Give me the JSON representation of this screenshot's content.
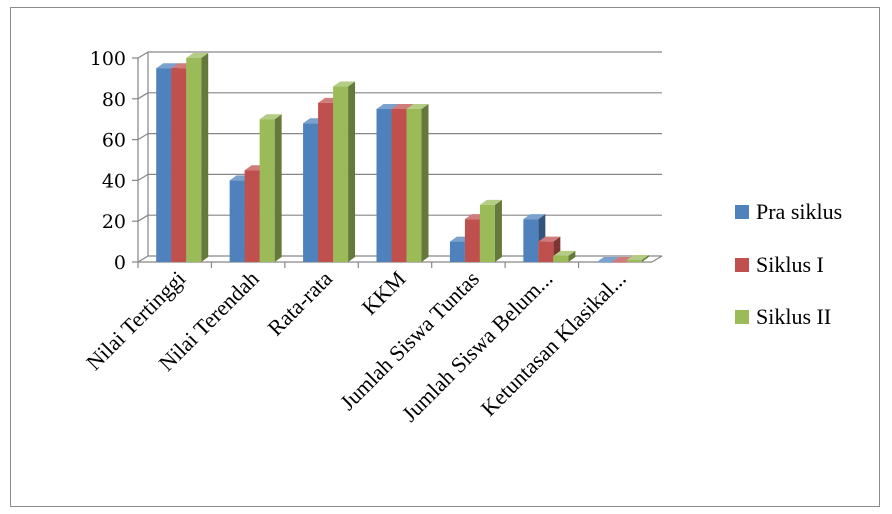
{
  "chart_data": {
    "type": "bar",
    "categories": [
      "Nilai Tertinggi",
      "Nilai Terendah",
      "Rata-rata",
      "KKM",
      "Jumlah Siswa Tuntas",
      "Jumlah Siswa Belum...",
      "Ketuntasan Klasikal..."
    ],
    "series": [
      {
        "name": "Pra siklus",
        "color": "#4f81bd",
        "values": [
          95,
          40,
          68,
          75,
          10,
          21,
          0
        ]
      },
      {
        "name": "Siklus I",
        "color": "#c0504d",
        "values": [
          95,
          45,
          78,
          75,
          21,
          10,
          0
        ]
      },
      {
        "name": "Siklus II",
        "color": "#9bbb59",
        "values": [
          100,
          70,
          86,
          75,
          28,
          3,
          1
        ]
      }
    ],
    "yticks": [
      "0",
      "20",
      "40",
      "60",
      "80",
      "100"
    ],
    "ylim": [
      0,
      100
    ],
    "grid": true,
    "legend_position": "right"
  }
}
